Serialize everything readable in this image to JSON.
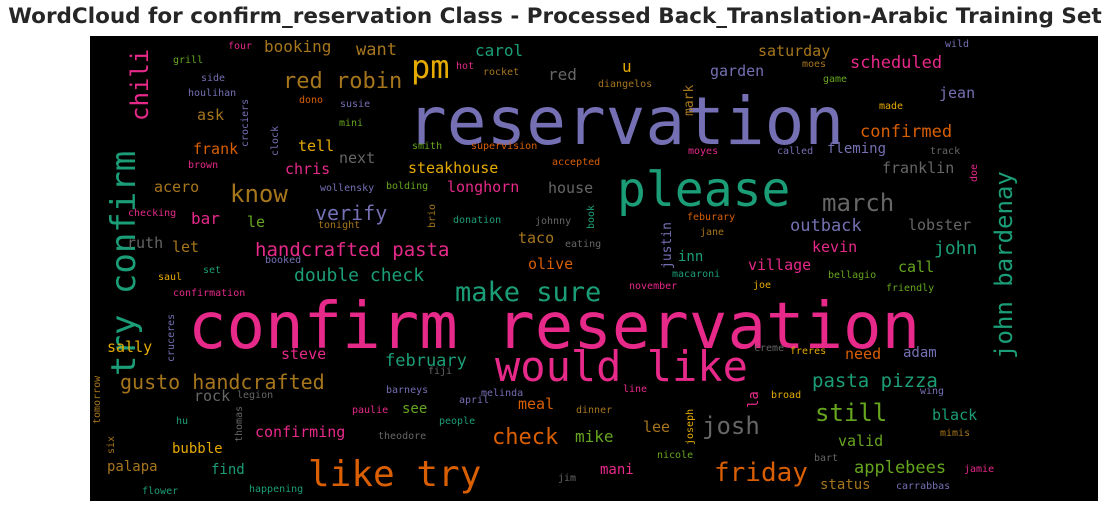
{
  "title": "WordCloud for confirm_reservation Class - Processed Back_Translation-Arabic Training Set",
  "chart_data": {
    "type": "wordcloud",
    "background": "#000000",
    "colormap": "Dark2",
    "words": [
      {
        "text": "confirm reservation",
        "color": "#e7298a"
      },
      {
        "text": "reservation",
        "color": "#7570b3"
      },
      {
        "text": "please",
        "color": "#1b9e77"
      },
      {
        "text": "would like",
        "color": "#e7298a"
      },
      {
        "text": "like try",
        "color": "#d95f02"
      },
      {
        "text": "try confirm",
        "color": "#1b9e77"
      },
      {
        "text": "pm",
        "color": "#e6ab02"
      },
      {
        "text": "make sure",
        "color": "#1b9e77"
      },
      {
        "text": "john bardenay",
        "color": "#1b9e77"
      },
      {
        "text": "march",
        "color": "#666666"
      },
      {
        "text": "gusto handcrafted",
        "color": "#a6761d"
      },
      {
        "text": "handcrafted pasta",
        "color": "#e7298a"
      },
      {
        "text": "red robin",
        "color": "#a6761d"
      },
      {
        "text": "chili",
        "color": "#e7298a"
      },
      {
        "text": "friday",
        "color": "#d95f02"
      },
      {
        "text": "still",
        "color": "#66a61e"
      },
      {
        "text": "josh",
        "color": "#666666"
      },
      {
        "text": "know",
        "color": "#a6761d"
      },
      {
        "text": "check",
        "color": "#d95f02"
      },
      {
        "text": "pasta pizza",
        "color": "#1b9e77"
      },
      {
        "text": "verify",
        "color": "#7570b3"
      },
      {
        "text": "double check",
        "color": "#1b9e77"
      },
      {
        "text": "february",
        "color": "#1b9e77"
      },
      {
        "text": "applebees",
        "color": "#66a61e"
      },
      {
        "text": "outback",
        "color": "#7570b3"
      },
      {
        "text": "john",
        "color": "#1b9e77"
      },
      {
        "text": "confirmed",
        "color": "#d95f02"
      },
      {
        "text": "scheduled",
        "color": "#e7298a"
      },
      {
        "text": "booking",
        "color": "#a6761d"
      },
      {
        "text": "want",
        "color": "#a6761d"
      },
      {
        "text": "carol",
        "color": "#1b9e77"
      },
      {
        "text": "saturday",
        "color": "#a6761d"
      },
      {
        "text": "mike",
        "color": "#66a61e"
      },
      {
        "text": "red",
        "color": "#666666"
      },
      {
        "text": "u",
        "color": "#e6ab02"
      },
      {
        "text": "garden",
        "color": "#7570b3"
      },
      {
        "text": "jean",
        "color": "#7570b3"
      },
      {
        "text": "mark",
        "color": "#a6761d"
      },
      {
        "text": "ask",
        "color": "#a6761d"
      },
      {
        "text": "frank",
        "color": "#d95f02"
      },
      {
        "text": "tell",
        "color": "#e6ab02"
      },
      {
        "text": "chris",
        "color": "#e7298a"
      },
      {
        "text": "next",
        "color": "#666666"
      },
      {
        "text": "steakhouse",
        "color": "#e6ab02"
      },
      {
        "text": "fleming",
        "color": "#7570b3"
      },
      {
        "text": "franklin",
        "color": "#666666"
      },
      {
        "text": "acero",
        "color": "#a6761d"
      },
      {
        "text": "bar",
        "color": "#e7298a"
      },
      {
        "text": "le",
        "color": "#66a61e"
      },
      {
        "text": "longhorn",
        "color": "#e7298a"
      },
      {
        "text": "house",
        "color": "#666666"
      },
      {
        "text": "lobster",
        "color": "#666666"
      },
      {
        "text": "ruth",
        "color": "#666666"
      },
      {
        "text": "let",
        "color": "#a6761d"
      },
      {
        "text": "taco",
        "color": "#a6761d"
      },
      {
        "text": "justin",
        "color": "#7570b3"
      },
      {
        "text": "inn",
        "color": "#1b9e77"
      },
      {
        "text": "kevin",
        "color": "#e7298a"
      },
      {
        "text": "call",
        "color": "#66a61e"
      },
      {
        "text": "olive",
        "color": "#d95f02"
      },
      {
        "text": "village",
        "color": "#e7298a"
      },
      {
        "text": "steve",
        "color": "#e7298a"
      },
      {
        "text": "sally",
        "color": "#e6ab02"
      },
      {
        "text": "need",
        "color": "#d95f02"
      },
      {
        "text": "adam",
        "color": "#7570b3"
      },
      {
        "text": "rock",
        "color": "#666666"
      },
      {
        "text": "meal",
        "color": "#d95f02"
      },
      {
        "text": "see",
        "color": "#66a61e"
      },
      {
        "text": "la",
        "color": "#e7298a"
      },
      {
        "text": "lee",
        "color": "#a6761d"
      },
      {
        "text": "valid",
        "color": "#66a61e"
      },
      {
        "text": "black",
        "color": "#1b9e77"
      },
      {
        "text": "confirming",
        "color": "#e7298a"
      },
      {
        "text": "bubble",
        "color": "#e6ab02"
      },
      {
        "text": "palapa",
        "color": "#a6761d"
      },
      {
        "text": "find",
        "color": "#1b9e77"
      },
      {
        "text": "mani",
        "color": "#e7298a"
      },
      {
        "text": "status",
        "color": "#a6761d"
      },
      {
        "text": "cruceres",
        "color": "#7570b3"
      },
      {
        "text": "joseph",
        "color": "#e6ab02"
      },
      {
        "text": "thomas",
        "color": "#666666"
      },
      {
        "text": "grill",
        "color": "#66a61e"
      },
      {
        "text": "four",
        "color": "#e7298a"
      },
      {
        "text": "side",
        "color": "#7570b3"
      },
      {
        "text": "houlihan",
        "color": "#7570b3"
      },
      {
        "text": "hot",
        "color": "#e7298a"
      },
      {
        "text": "rocket",
        "color": "#a6761d"
      },
      {
        "text": "diangelos",
        "color": "#a6761d"
      },
      {
        "text": "moes",
        "color": "#a6761d"
      },
      {
        "text": "wild",
        "color": "#7570b3"
      },
      {
        "text": "game",
        "color": "#66a61e"
      },
      {
        "text": "dono",
        "color": "#d95f02"
      },
      {
        "text": "susie",
        "color": "#7570b3"
      },
      {
        "text": "made",
        "color": "#e6ab02"
      },
      {
        "text": "mini",
        "color": "#66a61e"
      },
      {
        "text": "crociers",
        "color": "#7570b3"
      },
      {
        "text": "clock",
        "color": "#7570b3"
      },
      {
        "text": "smith",
        "color": "#66a61e"
      },
      {
        "text": "supervision",
        "color": "#d95f02"
      },
      {
        "text": "moyes",
        "color": "#e7298a"
      },
      {
        "text": "called",
        "color": "#7570b3"
      },
      {
        "text": "track",
        "color": "#666666"
      },
      {
        "text": "brown",
        "color": "#e7298a"
      },
      {
        "text": "accepted",
        "color": "#d95f02"
      },
      {
        "text": "wollensky",
        "color": "#7570b3"
      },
      {
        "text": "bolding",
        "color": "#66a61e"
      },
      {
        "text": "doe",
        "color": "#e7298a"
      },
      {
        "text": "checking",
        "color": "#e7298a"
      },
      {
        "text": "tonight",
        "color": "#a6761d"
      },
      {
        "text": "brio",
        "color": "#a6761d"
      },
      {
        "text": "donation",
        "color": "#1b9e77"
      },
      {
        "text": "johnny",
        "color": "#666666"
      },
      {
        "text": "book",
        "color": "#1b9e77"
      },
      {
        "text": "feburary",
        "color": "#d95f02"
      },
      {
        "text": "jane",
        "color": "#a6761d"
      },
      {
        "text": "eating",
        "color": "#666666"
      },
      {
        "text": "saul",
        "color": "#e6ab02"
      },
      {
        "text": "set",
        "color": "#1b9e77"
      },
      {
        "text": "booked",
        "color": "#7570b3"
      },
      {
        "text": "macaroni",
        "color": "#1b9e77"
      },
      {
        "text": "bellagio",
        "color": "#66a61e"
      },
      {
        "text": "joe",
        "color": "#e6ab02"
      },
      {
        "text": "confirmation",
        "color": "#e7298a"
      },
      {
        "text": "november",
        "color": "#e7298a"
      },
      {
        "text": "friendly",
        "color": "#66a61e"
      },
      {
        "text": "creme",
        "color": "#666666"
      },
      {
        "text": "freres",
        "color": "#e6ab02"
      },
      {
        "text": "fiji",
        "color": "#666666"
      },
      {
        "text": "tomorrow",
        "color": "#a6761d"
      },
      {
        "text": "barneys",
        "color": "#7570b3"
      },
      {
        "text": "legion",
        "color": "#666666"
      },
      {
        "text": "melinda",
        "color": "#7570b3"
      },
      {
        "text": "line",
        "color": "#e7298a"
      },
      {
        "text": "broad",
        "color": "#e6ab02"
      },
      {
        "text": "wing",
        "color": "#7570b3"
      },
      {
        "text": "april",
        "color": "#7570b3"
      },
      {
        "text": "paulie",
        "color": "#e7298a"
      },
      {
        "text": "dinner",
        "color": "#a6761d"
      },
      {
        "text": "people",
        "color": "#1b9e77"
      },
      {
        "text": "hu",
        "color": "#1b9e77"
      },
      {
        "text": "theodore",
        "color": "#666666"
      },
      {
        "text": "mimis",
        "color": "#a6761d"
      },
      {
        "text": "six",
        "color": "#a6761d"
      },
      {
        "text": "nicole",
        "color": "#66a61e"
      },
      {
        "text": "bart",
        "color": "#666666"
      },
      {
        "text": "jamie",
        "color": "#e7298a"
      },
      {
        "text": "jim",
        "color": "#666666"
      },
      {
        "text": "flower",
        "color": "#1b9e77"
      },
      {
        "text": "happening",
        "color": "#1b9e77"
      },
      {
        "text": "carrabbas",
        "color": "#7570b3"
      }
    ]
  }
}
